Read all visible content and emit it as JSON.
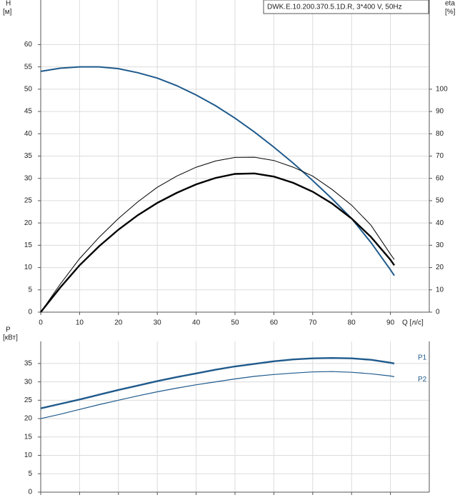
{
  "chart_data": [
    {
      "type": "line",
      "title": "DWK.E.10.200.370.5.1D.R, 3*400 V, 50Hz",
      "y_label": "H",
      "y_unit": "[м]",
      "y2_label": "eta",
      "y2_unit": "[%]",
      "x_label": "Q [л/с]",
      "x": [
        0,
        5,
        10,
        15,
        20,
        25,
        30,
        35,
        40,
        45,
        50,
        55,
        60,
        65,
        70,
        75,
        80,
        85,
        90,
        91
      ],
      "xlim": [
        0,
        100
      ],
      "xticks": [
        0,
        10,
        20,
        30,
        40,
        50,
        60,
        70,
        80,
        90
      ],
      "ylim": [
        0,
        70
      ],
      "yticks": [
        0,
        5,
        10,
        15,
        20,
        25,
        30,
        35,
        40,
        45,
        50,
        55,
        60
      ],
      "y2lim": [
        0,
        140
      ],
      "y2ticks": [
        0,
        10,
        20,
        30,
        40,
        50,
        60,
        70,
        80,
        90,
        100
      ],
      "grid": true,
      "series": [
        {
          "color": "#1f5a8c",
          "width": 2,
          "values": [
            54,
            54.7,
            55,
            55,
            54.6,
            53.7,
            52.5,
            50.8,
            48.7,
            46.3,
            43.5,
            40.4,
            37,
            33.4,
            29.5,
            25.4,
            21,
            15.6,
            9.5,
            8.2
          ]
        },
        {
          "color": "#000000",
          "width": 2.4,
          "axis": "y2",
          "values": [
            0,
            11,
            21,
            29.5,
            37,
            43.5,
            49,
            53.5,
            57.3,
            60.2,
            62,
            62.2,
            60.8,
            58,
            54,
            48.7,
            42,
            33.7,
            23.5,
            21
          ]
        },
        {
          "color": "#000000",
          "width": 1,
          "axis": "y2",
          "values": [
            0,
            12.5,
            24,
            33.5,
            42,
            49.5,
            56,
            61,
            65,
            67.8,
            69.4,
            69.5,
            68,
            65,
            61,
            55,
            48,
            39,
            26,
            23.6
          ]
        }
      ]
    },
    {
      "type": "line",
      "y_label": "P",
      "y_unit": "[кВт]",
      "x": [
        0,
        5,
        10,
        15,
        20,
        25,
        30,
        35,
        40,
        45,
        50,
        55,
        60,
        65,
        70,
        75,
        80,
        85,
        90,
        91
      ],
      "xlim": [
        0,
        100
      ],
      "xticks": [
        0,
        10,
        20,
        30,
        40,
        50,
        60,
        70,
        80,
        90
      ],
      "ylim": [
        0,
        41
      ],
      "yticks": [
        0,
        5,
        10,
        15,
        20,
        25,
        30,
        35
      ],
      "grid": true,
      "series": [
        {
          "name": "P1",
          "color": "#1f5a8c",
          "width": 2.4,
          "values": [
            22.8,
            24,
            25.2,
            26.5,
            27.8,
            29,
            30.2,
            31.3,
            32.3,
            33.3,
            34.2,
            34.9,
            35.6,
            36.1,
            36.4,
            36.5,
            36.4,
            36,
            35.2,
            35
          ]
        },
        {
          "name": "P2",
          "color": "#1f5a8c",
          "width": 1.2,
          "values": [
            20,
            21.2,
            22.5,
            23.8,
            25,
            26.2,
            27.3,
            28.3,
            29.2,
            30,
            30.8,
            31.5,
            32,
            32.4,
            32.7,
            32.8,
            32.6,
            32.2,
            31.6,
            31.4
          ]
        }
      ]
    }
  ]
}
